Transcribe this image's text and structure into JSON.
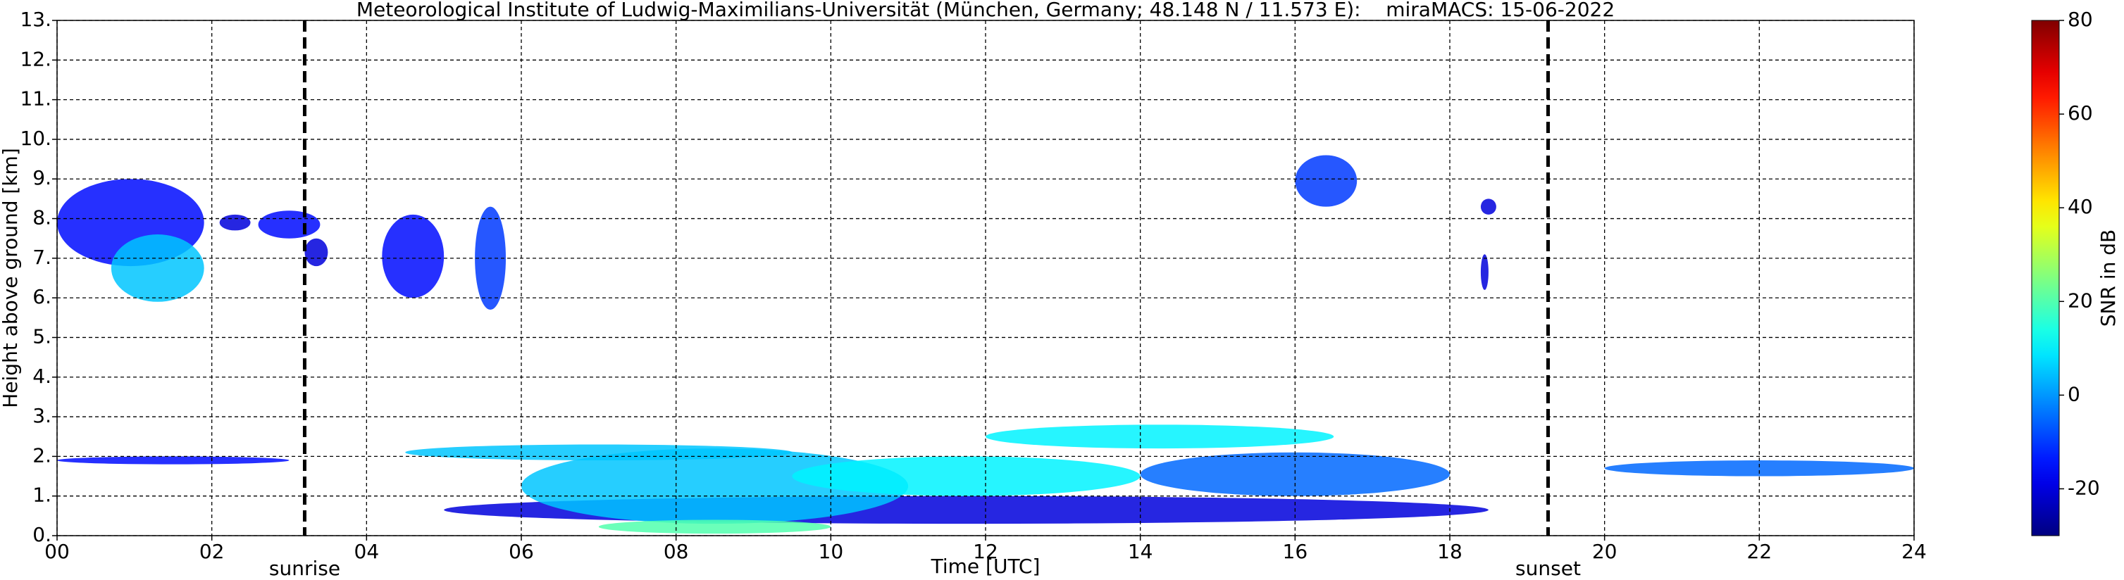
{
  "chart_data": {
    "type": "heatmap",
    "title": "Meteorological Institute of Ludwig-Maximilians-Universität (München, Germany; 48.148 N / 11.573 E):    miraMACS: 15-06-2022",
    "x_label": "Time [UTC]",
    "y_label": "Height above ground [km]",
    "colorbar_label": "SNR in dB",
    "xlim": [
      0,
      24
    ],
    "xticks": [
      {
        "value": 0,
        "label": "00"
      },
      {
        "value": 2,
        "label": "02"
      },
      {
        "value": 4,
        "label": "04"
      },
      {
        "value": 6,
        "label": "06"
      },
      {
        "value": 8,
        "label": "08"
      },
      {
        "value": 10,
        "label": "10"
      },
      {
        "value": 12,
        "label": "12"
      },
      {
        "value": 14,
        "label": "14"
      },
      {
        "value": 16,
        "label": "16"
      },
      {
        "value": 18,
        "label": "18"
      },
      {
        "value": 20,
        "label": "20"
      },
      {
        "value": 22,
        "label": "22"
      },
      {
        "value": 24,
        "label": "24"
      }
    ],
    "ylim": [
      0,
      13
    ],
    "yticks": [
      {
        "value": 0,
        "label": "0."
      },
      {
        "value": 1,
        "label": "1."
      },
      {
        "value": 2,
        "label": "2."
      },
      {
        "value": 3,
        "label": "3."
      },
      {
        "value": 4,
        "label": "4."
      },
      {
        "value": 5,
        "label": "5."
      },
      {
        "value": 6,
        "label": "6."
      },
      {
        "value": 7,
        "label": "7."
      },
      {
        "value": 8,
        "label": "8."
      },
      {
        "value": 9,
        "label": "9."
      },
      {
        "value": 10,
        "label": "10."
      },
      {
        "value": 11,
        "label": "11."
      },
      {
        "value": 12,
        "label": "12."
      },
      {
        "value": 13,
        "label": "13."
      }
    ],
    "clim": [
      -30,
      80
    ],
    "cticks": [
      -20,
      0,
      20,
      40,
      60,
      80
    ],
    "colormap": "jet",
    "grid": true,
    "annotations": [
      {
        "text": "sunrise",
        "x": 3.2
      },
      {
        "text": "sunset",
        "x": 19.27
      }
    ],
    "echoes": [
      {
        "start": 0.0,
        "end": 1.9,
        "base": 6.8,
        "top": 9.0,
        "snr": -15
      },
      {
        "start": 0.7,
        "end": 1.9,
        "base": 5.9,
        "top": 7.6,
        "snr": 5
      },
      {
        "start": 2.1,
        "end": 2.5,
        "base": 7.7,
        "top": 8.1,
        "snr": -20
      },
      {
        "start": 2.6,
        "end": 3.4,
        "base": 7.5,
        "top": 8.2,
        "snr": -15
      },
      {
        "start": 3.2,
        "end": 3.5,
        "base": 6.8,
        "top": 7.5,
        "snr": -20
      },
      {
        "start": 4.2,
        "end": 5.0,
        "base": 6.0,
        "top": 8.1,
        "snr": -15
      },
      {
        "start": 5.4,
        "end": 5.8,
        "base": 5.7,
        "top": 8.3,
        "snr": -10
      },
      {
        "start": 16.0,
        "end": 16.8,
        "base": 8.3,
        "top": 9.6,
        "snr": -10
      },
      {
        "start": 18.4,
        "end": 18.6,
        "base": 8.1,
        "top": 8.5,
        "snr": -20
      },
      {
        "start": 18.4,
        "end": 18.5,
        "base": 6.2,
        "top": 7.1,
        "snr": -20
      },
      {
        "start": 0.0,
        "end": 3.0,
        "base": 1.8,
        "top": 2.0,
        "snr": -15
      },
      {
        "start": 5.0,
        "end": 18.5,
        "base": 0.3,
        "top": 1.0,
        "snr": -20
      },
      {
        "start": 4.5,
        "end": 9.5,
        "base": 1.9,
        "top": 2.3,
        "snr": 5
      },
      {
        "start": 6.0,
        "end": 11.0,
        "base": 0.3,
        "top": 2.2,
        "snr": 5
      },
      {
        "start": 9.5,
        "end": 14.0,
        "base": 1.0,
        "top": 2.0,
        "snr": 10
      },
      {
        "start": 12.0,
        "end": 16.5,
        "base": 2.2,
        "top": 2.8,
        "snr": 10
      },
      {
        "start": 14.0,
        "end": 18.0,
        "base": 1.0,
        "top": 2.1,
        "snr": -5
      },
      {
        "start": 20.0,
        "end": 24.0,
        "base": 1.5,
        "top": 1.9,
        "snr": -5
      },
      {
        "start": 7.0,
        "end": 10.0,
        "base": 0.05,
        "top": 0.4,
        "snr": 20
      }
    ]
  }
}
